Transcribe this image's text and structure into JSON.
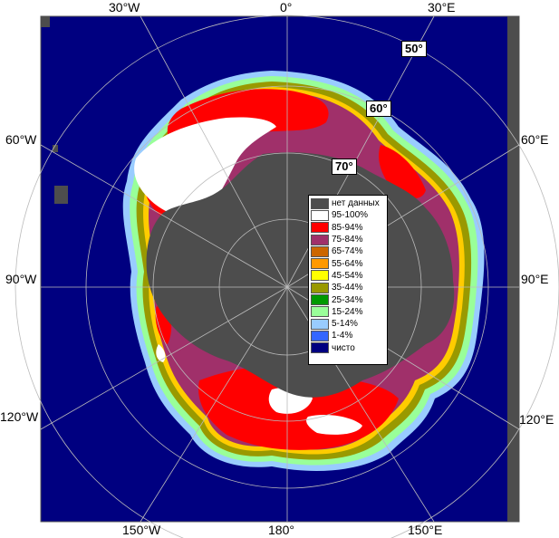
{
  "map": {
    "colors": {
      "ocean": "#000080",
      "no_data": "#4d4d4d",
      "land_frame": "#555555",
      "grid": "#bbbbbb"
    },
    "lon_labels_top": [
      "30°W",
      "0°",
      "30°E"
    ],
    "lon_labels_bottom": [
      "150°W",
      "180°",
      "150°E"
    ],
    "lon_labels_left": [
      "60°W",
      "90°W",
      "120°W"
    ],
    "lon_labels_right": [
      "60°E",
      "90°E",
      "120°E"
    ],
    "lat_labels": [
      "50°",
      "60°",
      "70°"
    ]
  },
  "legend": {
    "items": [
      {
        "label": "нет данных",
        "color": "#4d4d4d"
      },
      {
        "label": "95-100%",
        "color": "#ffffff"
      },
      {
        "label": "85-94%",
        "color": "#ff0000"
      },
      {
        "label": "75-84%",
        "color": "#a0306a"
      },
      {
        "label": "65-74%",
        "color": "#cc6600"
      },
      {
        "label": "55-64%",
        "color": "#ff9900"
      },
      {
        "label": "45-54%",
        "color": "#ffff00"
      },
      {
        "label": "35-44%",
        "color": "#999900"
      },
      {
        "label": "25-34%",
        "color": "#009900"
      },
      {
        "label": "15-24%",
        "color": "#99ff99"
      },
      {
        "label": "5-14%",
        "color": "#99ccff"
      },
      {
        "label": "1-4%",
        "color": "#3366ff"
      },
      {
        "label": "чисто",
        "color": "#000080"
      }
    ]
  }
}
